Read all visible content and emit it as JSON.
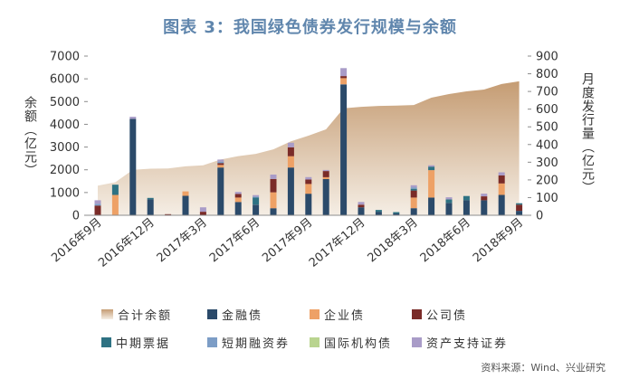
{
  "chart_data": {
    "type": "bar",
    "stacked": true,
    "title": "图表 3：我国绿色债券发行规模与余额",
    "x_tick_labels": [
      "2016年9月",
      "2016年12月",
      "2017年3月",
      "2017年6月",
      "2017年9月",
      "2017年12月",
      "2018年3月",
      "2018年6月",
      "2018年9月"
    ],
    "y_left": {
      "label": "余额（亿元）",
      "lim": [
        0,
        7000
      ],
      "ticks": [
        0,
        1000,
        2000,
        3000,
        4000,
        5000,
        6000,
        7000
      ]
    },
    "y_right": {
      "label": "月度发行量（亿元）",
      "lim": [
        0,
        900
      ],
      "ticks": [
        0,
        100,
        200,
        300,
        400,
        500,
        600,
        700,
        800,
        900
      ]
    },
    "area": {
      "name": "合计余额",
      "type": "area",
      "axis": "left",
      "color": "#c59c73",
      "color_light": "#f5eee5",
      "values": [
        1300,
        1450,
        2000,
        2050,
        2060,
        2150,
        2200,
        2450,
        2600,
        2700,
        2900,
        3250,
        3500,
        3780,
        4700,
        4770,
        4810,
        4820,
        4850,
        5170,
        5330,
        5450,
        5530,
        5770,
        5890
      ]
    },
    "series": [
      {
        "name": "金融债",
        "axis": "right",
        "color": "#2b4a6a",
        "values": [
          0,
          0,
          545,
          90,
          0,
          110,
          0,
          270,
          75,
          60,
          40,
          270,
          122,
          205,
          740,
          45,
          20,
          10,
          40,
          100,
          70,
          85,
          85,
          115,
          25
        ]
      },
      {
        "name": "企业债",
        "axis": "right",
        "color": "#eea166",
        "values": [
          0,
          115,
          0,
          0,
          0,
          25,
          0,
          15,
          25,
          0,
          90,
          64,
          55,
          10,
          35,
          0,
          0,
          0,
          60,
          155,
          0,
          0,
          0,
          65,
          0
        ]
      },
      {
        "name": "公司债",
        "axis": "right",
        "color": "#7a2b28",
        "values": [
          55,
          0,
          0,
          0,
          6,
          0,
          20,
          10,
          20,
          0,
          75,
          50,
          25,
          35,
          12,
          15,
          0,
          0,
          40,
          0,
          0,
          0,
          22,
          45,
          35
        ]
      },
      {
        "name": "中期票据",
        "axis": "right",
        "color": "#2e7283",
        "values": [
          0,
          58,
          0,
          8,
          0,
          0,
          0,
          0,
          0,
          40,
          0,
          0,
          0,
          0,
          0,
          0,
          10,
          8,
          10,
          20,
          20,
          24,
          0,
          0,
          8
        ]
      },
      {
        "name": "短期融资券",
        "axis": "right",
        "color": "#7c9dc6",
        "values": [
          10,
          0,
          0,
          0,
          0,
          0,
          0,
          8,
          0,
          6,
          0,
          0,
          0,
          0,
          0,
          0,
          0,
          0,
          8,
          0,
          0,
          0,
          0,
          0,
          0
        ]
      },
      {
        "name": "国际机构债",
        "axis": "right",
        "color": "#b9d48f",
        "values": [
          0,
          0,
          0,
          0,
          0,
          0,
          0,
          0,
          0,
          0,
          0,
          0,
          0,
          0,
          0,
          0,
          0,
          0,
          0,
          0,
          0,
          0,
          0,
          0,
          0
        ]
      },
      {
        "name": "资产支持证券",
        "axis": "right",
        "color": "#a99cc8",
        "values": [
          20,
          0,
          12,
          0,
          0,
          0,
          25,
          12,
          12,
          8,
          25,
          26,
          14,
          6,
          45,
          15,
          0,
          0,
          12,
          8,
          12,
          0,
          15,
          18,
          0
        ]
      }
    ],
    "legend": "bottom",
    "grid": false
  },
  "source": "资料来源：Wind、兴业研究"
}
